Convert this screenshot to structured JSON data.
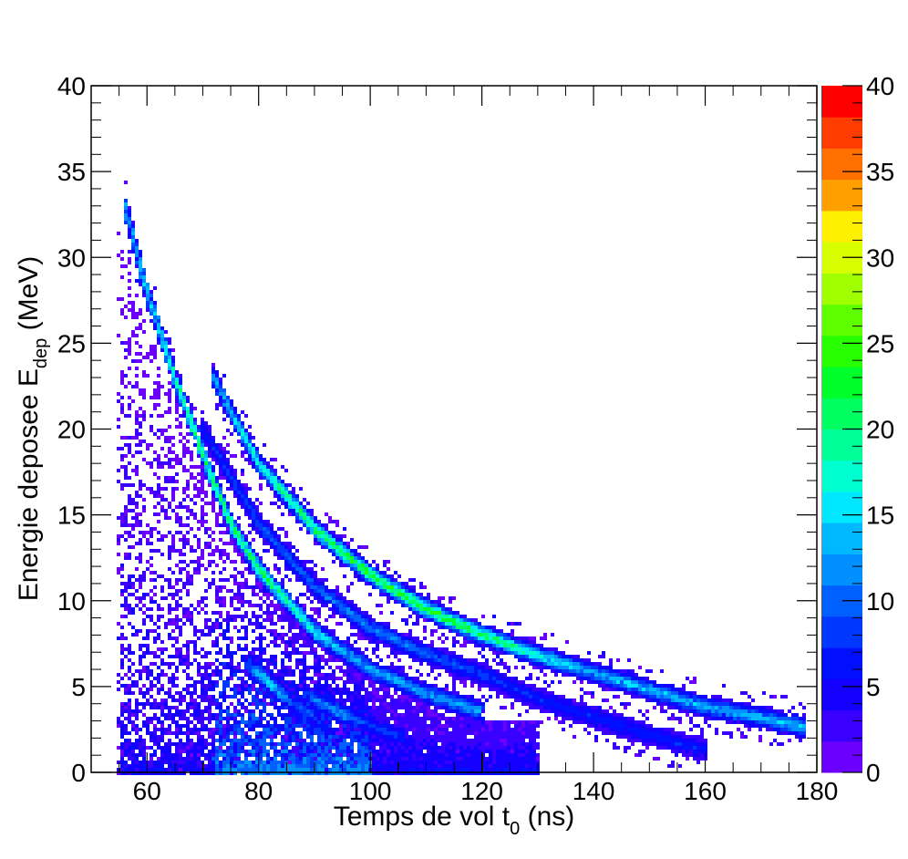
{
  "chart_data": {
    "type": "heatmap",
    "title": "",
    "xlabel": {
      "main": "Temps de vol t",
      "sub": "0",
      "unit": " (ns)"
    },
    "ylabel": {
      "main": "Energie deposee E",
      "sub": "dep",
      "unit": " (MeV)"
    },
    "xlim": [
      50,
      180
    ],
    "ylim": [
      0,
      40
    ],
    "x_ticks": [
      "60",
      "80",
      "100",
      "120",
      "140",
      "160",
      "180"
    ],
    "y_ticks": [
      "0",
      "5",
      "10",
      "15",
      "20",
      "25",
      "30",
      "35",
      "40"
    ],
    "colorbar": {
      "range": [
        0,
        40
      ],
      "ticks": [
        "0",
        "5",
        "10",
        "15",
        "20",
        "25",
        "30",
        "35",
        "40"
      ],
      "colors": [
        "#6b00ff",
        "#3a00ff",
        "#1400ff",
        "#0010ff",
        "#0038ff",
        "#0060ff",
        "#0090ff",
        "#00b8ff",
        "#00e8ff",
        "#00ffd0",
        "#00ff98",
        "#00ff60",
        "#00ff2a",
        "#28ff00",
        "#60ff00",
        "#a0ff00",
        "#d8ff00",
        "#fff000",
        "#ffa000",
        "#ff7000",
        "#ff3c00",
        "#ff0000"
      ]
    },
    "bands": [
      {
        "x": [
          56,
          60,
          65,
          70,
          75,
          80,
          90,
          100,
          110,
          120
        ],
        "y": [
          33,
          28,
          23,
          18.5,
          14.5,
          11.8,
          8.2,
          6.0,
          4.6,
          3.5
        ],
        "peak_count": 22
      },
      {
        "x": [
          72,
          75,
          80,
          90,
          100,
          110,
          120,
          130,
          140,
          150,
          160,
          170,
          178
        ],
        "y": [
          23,
          21,
          18,
          14.2,
          11.5,
          9.5,
          8.0,
          6.8,
          5.8,
          4.8,
          3.8,
          3.2,
          2.6
        ],
        "peak_count": 24
      },
      {
        "x": [
          70,
          80,
          90,
          100,
          110,
          120,
          130,
          140,
          150,
          160
        ],
        "y": [
          20,
          14.5,
          10.8,
          8.4,
          6.9,
          5.7,
          4.3,
          3.2,
          2.2,
          1.3
        ],
        "peak_count": 10
      },
      {
        "x": [
          78,
          82,
          86,
          90
        ],
        "y": [
          6.3,
          5.2,
          4.0,
          3.2
        ],
        "peak_count": 15
      },
      {
        "x": [
          88,
          95,
          100,
          106
        ],
        "y": [
          4.6,
          3.4,
          2.7,
          2.0
        ],
        "peak_count": 12
      }
    ],
    "diffuse_region": {
      "x": [
        55,
        130
      ],
      "y": [
        0,
        30
      ],
      "peak_count": 8
    }
  }
}
